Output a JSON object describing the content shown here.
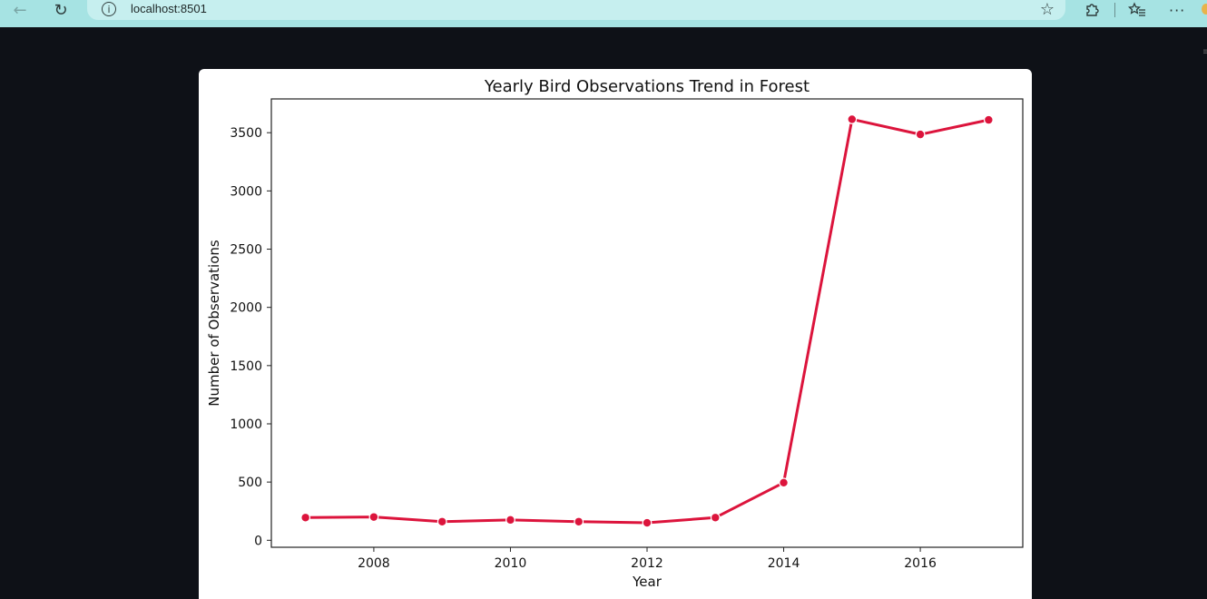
{
  "browser": {
    "url": "localhost:8501",
    "icons": {
      "back": "arrow-left-icon",
      "reload": "reload-icon",
      "info": "info-icon",
      "star": "star-icon",
      "extensions": "puzzle-icon",
      "favorites": "favorites-icon",
      "menu": "more-icon"
    }
  },
  "chart_data": {
    "type": "line",
    "title": "Yearly Bird Observations Trend in Forest",
    "xlabel": "Year",
    "ylabel": "Number of Observations",
    "x": [
      2007,
      2008,
      2009,
      2010,
      2011,
      2012,
      2013,
      2014,
      2015,
      2016,
      2017
    ],
    "series": [
      {
        "values": [
          195,
          200,
          160,
          175,
          160,
          150,
          195,
          495,
          3615,
          3485,
          3610
        ],
        "color": "#dc143c"
      }
    ],
    "xlim": [
      2006.5,
      2017.5
    ],
    "ylim": [
      -60,
      3790
    ],
    "x_ticks": [
      2008,
      2010,
      2012,
      2014,
      2016
    ],
    "y_ticks": [
      0,
      500,
      1000,
      1500,
      2000,
      2500,
      3000,
      3500
    ],
    "grid": false,
    "legend": "none"
  }
}
